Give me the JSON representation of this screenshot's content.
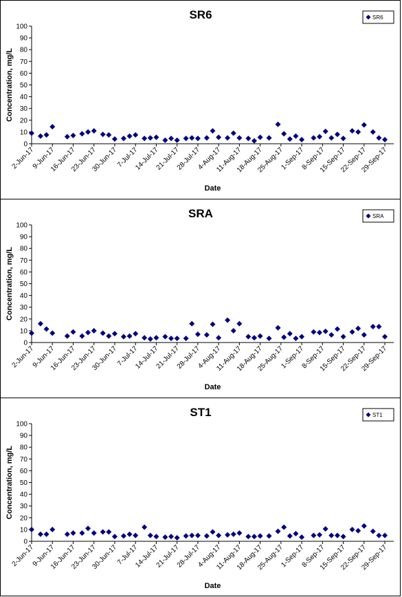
{
  "chart_data": [
    {
      "type": "scatter",
      "title": "SR6",
      "xlabel": "Date",
      "ylabel": "Concentration, mg/L",
      "ylim": [
        0,
        100
      ],
      "yticks": [
        0,
        10,
        20,
        30,
        40,
        50,
        60,
        70,
        80,
        90,
        100
      ],
      "xlim": [
        "2017-06-02",
        "2017-10-02"
      ],
      "xtick_labels": [
        "2-Jun-17",
        "9-Jun-17",
        "16-Jun-17",
        "23-Jun-17",
        "30-Jun-17",
        "7-Jul-17",
        "14-Jul-17",
        "21-Jul-17",
        "28-Jul-17",
        "4-Aug-17",
        "11-Aug-17",
        "18-Aug-17",
        "25-Aug-17",
        "1-Sep-17",
        "8-Sep-17",
        "15-Sep-17",
        "22-Sep-17",
        "29-Sep-17"
      ],
      "grid": false,
      "legend": "top-right",
      "series": [
        {
          "name": "SR6",
          "color": "#00007f",
          "marker": "diamond",
          "x": [
            "2017-06-02",
            "2017-06-05",
            "2017-06-07",
            "2017-06-09",
            "2017-06-14",
            "2017-06-16",
            "2017-06-19",
            "2017-06-21",
            "2017-06-23",
            "2017-06-26",
            "2017-06-28",
            "2017-06-30",
            "2017-07-03",
            "2017-07-05",
            "2017-07-07",
            "2017-07-10",
            "2017-07-12",
            "2017-07-14",
            "2017-07-17",
            "2017-07-19",
            "2017-07-21",
            "2017-07-24",
            "2017-07-26",
            "2017-07-28",
            "2017-07-31",
            "2017-08-02",
            "2017-08-04",
            "2017-08-07",
            "2017-08-09",
            "2017-08-11",
            "2017-08-14",
            "2017-08-16",
            "2017-08-18",
            "2017-08-21",
            "2017-08-24",
            "2017-08-26",
            "2017-08-28",
            "2017-08-30",
            "2017-09-01",
            "2017-09-05",
            "2017-09-07",
            "2017-09-09",
            "2017-09-11",
            "2017-09-13",
            "2017-09-15",
            "2017-09-18",
            "2017-09-20",
            "2017-09-22",
            "2017-09-25",
            "2017-09-27",
            "2017-09-29"
          ],
          "y": [
            9,
            6.5,
            7.5,
            14.5,
            6,
            7,
            8.5,
            10,
            11,
            8,
            7.5,
            4,
            4.5,
            6.5,
            7.5,
            4.5,
            5,
            5.5,
            3,
            4.5,
            3,
            4.5,
            5,
            4.5,
            5,
            11,
            5.5,
            5,
            9,
            5,
            4.5,
            2.5,
            5.5,
            5,
            16.5,
            8.5,
            4,
            6.5,
            3.5,
            5,
            6,
            10.5,
            5,
            8,
            4.5,
            11,
            10,
            16,
            10,
            5,
            3.5
          ]
        }
      ]
    },
    {
      "type": "scatter",
      "title": "SRA",
      "xlabel": "Date",
      "ylabel": "Concentration, mg/L",
      "ylim": [
        0,
        100
      ],
      "yticks": [
        0,
        10,
        20,
        30,
        40,
        50,
        60,
        70,
        80,
        90,
        100
      ],
      "xlim": [
        "2017-06-02",
        "2017-10-02"
      ],
      "xtick_labels": [
        "2-Jun-17",
        "9-Jun-17",
        "16-Jun-17",
        "23-Jun-17",
        "30-Jun-17",
        "7-Jul-17",
        "14-Jul-17",
        "21-Jul-17",
        "28-Jul-17",
        "4-Aug-17",
        "11-Aug-17",
        "18-Aug-17",
        "25-Aug-17",
        "1-Sep-17",
        "8-Sep-17",
        "15-Sep-17",
        "22-Sep-17",
        "29-Sep-17"
      ],
      "grid": false,
      "legend": "top-right",
      "series": [
        {
          "name": "SRA",
          "color": "#00007f",
          "marker": "diamond",
          "x": [
            "2017-06-02",
            "2017-06-05",
            "2017-06-07",
            "2017-06-09",
            "2017-06-14",
            "2017-06-16",
            "2017-06-19",
            "2017-06-21",
            "2017-06-23",
            "2017-06-26",
            "2017-06-28",
            "2017-06-30",
            "2017-07-03",
            "2017-07-05",
            "2017-07-07",
            "2017-07-10",
            "2017-07-12",
            "2017-07-14",
            "2017-07-17",
            "2017-07-19",
            "2017-07-21",
            "2017-07-24",
            "2017-07-26",
            "2017-07-28",
            "2017-07-31",
            "2017-08-02",
            "2017-08-04",
            "2017-08-07",
            "2017-08-09",
            "2017-08-11",
            "2017-08-14",
            "2017-08-16",
            "2017-08-18",
            "2017-08-21",
            "2017-08-24",
            "2017-08-26",
            "2017-08-28",
            "2017-08-30",
            "2017-09-01",
            "2017-09-05",
            "2017-09-07",
            "2017-09-09",
            "2017-09-11",
            "2017-09-13",
            "2017-09-15",
            "2017-09-18",
            "2017-09-20",
            "2017-09-22",
            "2017-09-25",
            "2017-09-27",
            "2017-09-29"
          ],
          "y": [
            8,
            16,
            11.5,
            8,
            5.5,
            9,
            5.5,
            8.5,
            10,
            8,
            5.5,
            7.5,
            5,
            5.5,
            7.5,
            4,
            3,
            4,
            5,
            3.5,
            3.5,
            3.5,
            16,
            7,
            6.5,
            15.5,
            4,
            19,
            10,
            16,
            5,
            4,
            5.5,
            3.5,
            12.5,
            4.5,
            7.5,
            3.5,
            5,
            9,
            8.5,
            9.5,
            6.5,
            11.5,
            5,
            9,
            12,
            6.5,
            13.5,
            13.5,
            5
          ]
        }
      ]
    },
    {
      "type": "scatter",
      "title": "ST1",
      "xlabel": "Date",
      "ylabel": "Concentration, mg/L",
      "ylim": [
        0,
        100
      ],
      "yticks": [
        0,
        10,
        20,
        30,
        40,
        50,
        60,
        70,
        80,
        90,
        100
      ],
      "xlim": [
        "2017-06-02",
        "2017-10-02"
      ],
      "xtick_labels": [
        "2-Jun-17",
        "9-Jun-17",
        "16-Jun-17",
        "23-Jun-17",
        "30-Jun-17",
        "7-Jul-17",
        "14-Jul-17",
        "21-Jul-17",
        "28-Jul-17",
        "4-Aug-17",
        "11-Aug-17",
        "18-Aug-17",
        "25-Aug-17",
        "1-Sep-17",
        "8-Sep-17",
        "15-Sep-17",
        "22-Sep-17",
        "29-Sep-17"
      ],
      "grid": false,
      "legend": "top-right",
      "series": [
        {
          "name": "ST1",
          "color": "#00007f",
          "marker": "diamond",
          "x": [
            "2017-06-02",
            "2017-06-05",
            "2017-06-07",
            "2017-06-09",
            "2017-06-14",
            "2017-06-16",
            "2017-06-19",
            "2017-06-21",
            "2017-06-23",
            "2017-06-26",
            "2017-06-28",
            "2017-06-30",
            "2017-07-03",
            "2017-07-05",
            "2017-07-07",
            "2017-07-10",
            "2017-07-12",
            "2017-07-14",
            "2017-07-17",
            "2017-07-19",
            "2017-07-21",
            "2017-07-24",
            "2017-07-26",
            "2017-07-28",
            "2017-07-31",
            "2017-08-02",
            "2017-08-04",
            "2017-08-07",
            "2017-08-09",
            "2017-08-11",
            "2017-08-14",
            "2017-08-16",
            "2017-08-18",
            "2017-08-21",
            "2017-08-24",
            "2017-08-26",
            "2017-08-28",
            "2017-08-30",
            "2017-09-01",
            "2017-09-05",
            "2017-09-07",
            "2017-09-09",
            "2017-09-11",
            "2017-09-13",
            "2017-09-15",
            "2017-09-18",
            "2017-09-20",
            "2017-09-22",
            "2017-09-25",
            "2017-09-27",
            "2017-09-29"
          ],
          "y": [
            10,
            6,
            6,
            10,
            6,
            7,
            7,
            11,
            7,
            8,
            8,
            4,
            4.5,
            6,
            5,
            12,
            5,
            4,
            3.5,
            4,
            3,
            4.5,
            5,
            5,
            4.5,
            8,
            5,
            5.5,
            6,
            7,
            4,
            4,
            4.5,
            4.5,
            8.5,
            12,
            4.5,
            6.5,
            3.5,
            5,
            5.5,
            10.5,
            5,
            5,
            4,
            10,
            9,
            13,
            8.5,
            5,
            5
          ]
        }
      ]
    }
  ]
}
